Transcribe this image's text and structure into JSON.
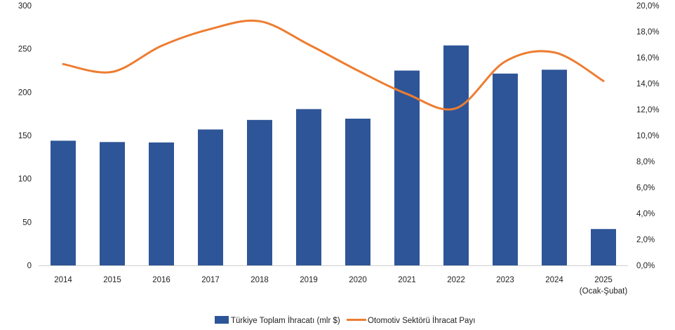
{
  "chart_data": {
    "type": "bar",
    "categories": [
      "2014",
      "2015",
      "2016",
      "2017",
      "2018",
      "2019",
      "2020",
      "2021",
      "2022",
      "2023",
      "2024",
      "2025\n(Ocak-Şubat)"
    ],
    "series": [
      {
        "name": "Türkiye Toplam İhracatı (mlr $)",
        "type": "bar",
        "axis": "left",
        "color": "#2E5597",
        "values": [
          144,
          142.5,
          142,
          157,
          168,
          180.5,
          169.5,
          225,
          254,
          221.5,
          226,
          42
        ]
      },
      {
        "name": "Otomotiv Sektörü İhracat Payı",
        "type": "line",
        "axis": "right",
        "color": "#ED7D31",
        "values": [
          15.5,
          14.9,
          16.9,
          18.2,
          18.8,
          17.0,
          15.0,
          13.2,
          12.1,
          15.7,
          16.4,
          14.2
        ]
      }
    ],
    "y_left": {
      "ylim": [
        0,
        300
      ],
      "ticks": [
        "0",
        "50",
        "100",
        "150",
        "200",
        "250",
        "300"
      ]
    },
    "y_right": {
      "ylim": [
        0,
        20
      ],
      "ticks": [
        "0,0%",
        "2,0%",
        "4,0%",
        "6,0%",
        "8,0%",
        "10,0%",
        "12,0%",
        "14,0%",
        "16,0%",
        "18,0%",
        "20,0%"
      ]
    },
    "grid": false,
    "legend_position": "bottom-center"
  }
}
